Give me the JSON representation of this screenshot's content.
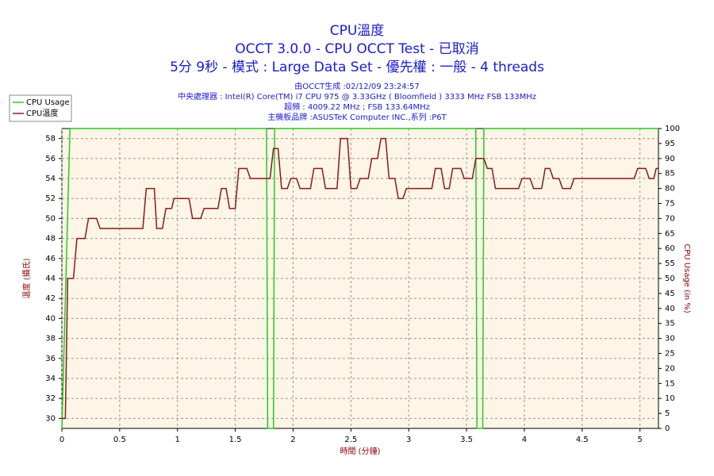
{
  "chart_data": {
    "type": "line",
    "title": "CPU溫度",
    "subtitle": "OCCT 3.0.0 - CPU OCCT Test - 已取消",
    "subtitle2": "5分 9秒 - 模式 : Large Data Set - 優先權 : 一般 - 4 threads",
    "info": [
      "由OCCT生成 :02/12/09 23:24:57",
      "中央處理器 : Intel(R) Core(TM) i7 CPU 975 @ 3.33GHz ( Bloomfield ) 3333 MHz FSB 133MHz",
      "超頻 : 4009.22 MHz ; FSB 133.64MHz",
      "主機板品牌 :ASUSTeK Computer INC.,系列 :P6T"
    ],
    "x_label": "時間 (分鐘)",
    "y_label": "溫度 (攝氏)",
    "y2_label": "CPU Usage (in %)",
    "xlim": [
      0,
      5.16
    ],
    "xticks": [
      0,
      0.5,
      1,
      1.5,
      2,
      2.5,
      3,
      3.5,
      4,
      4.5,
      5
    ],
    "ylim": [
      29,
      59
    ],
    "yticks": [
      30,
      32,
      34,
      36,
      38,
      40,
      42,
      44,
      46,
      48,
      50,
      52,
      54,
      56,
      58
    ],
    "y2lim": [
      0,
      100
    ],
    "y2ticks": [
      0,
      5,
      10,
      15,
      20,
      25,
      30,
      35,
      40,
      45,
      50,
      55,
      60,
      65,
      70,
      75,
      80,
      85,
      90,
      95,
      100
    ],
    "grid": true,
    "legend": "top-left",
    "series": [
      {
        "name": "CPU Usage",
        "color": "#22cc22",
        "axis": "y2",
        "x": [
          0,
          0.07,
          1.77,
          1.78,
          1.83,
          1.84,
          3.58,
          3.59,
          3.64,
          3.65,
          5.16
        ],
        "values": [
          0,
          100,
          100,
          0,
          0,
          100,
          100,
          0,
          0,
          100,
          100
        ]
      },
      {
        "name": "CPU溫度",
        "color": "#8b1a1a",
        "x": [
          0,
          0.03,
          0.05,
          0.1,
          0.13,
          0.2,
          0.23,
          0.3,
          0.33,
          0.7,
          0.73,
          0.8,
          0.82,
          0.87,
          0.9,
          0.95,
          0.97,
          1.1,
          1.13,
          1.2,
          1.23,
          1.35,
          1.38,
          1.42,
          1.45,
          1.5,
          1.53,
          1.6,
          1.63,
          1.8,
          1.83,
          1.87,
          1.9,
          1.95,
          1.98,
          2.03,
          2.06,
          2.15,
          2.18,
          2.25,
          2.28,
          2.38,
          2.41,
          2.47,
          2.5,
          2.55,
          2.58,
          2.65,
          2.68,
          2.73,
          2.76,
          2.8,
          2.83,
          2.88,
          2.91,
          2.95,
          2.98,
          3.2,
          3.23,
          3.28,
          3.31,
          3.35,
          3.38,
          3.45,
          3.48,
          3.55,
          3.58,
          3.65,
          3.68,
          3.72,
          3.75,
          3.95,
          3.98,
          4.05,
          4.08,
          4.15,
          4.18,
          4.22,
          4.25,
          4.3,
          4.33,
          4.4,
          4.43,
          4.95,
          4.98,
          5.05,
          5.08,
          5.12,
          5.14,
          5.16
        ],
        "values": [
          30,
          30,
          44,
          44,
          48,
          48,
          50,
          50,
          49,
          49,
          53,
          53,
          49,
          49,
          51,
          51,
          52,
          52,
          50,
          50,
          51,
          51,
          53,
          53,
          51,
          51,
          55,
          55,
          54,
          54,
          57,
          57,
          53,
          53,
          54,
          54,
          53,
          53,
          55,
          55,
          53,
          53,
          58,
          58,
          53,
          53,
          54,
          54,
          56,
          56,
          58,
          58,
          54,
          54,
          52,
          52,
          53,
          53,
          55,
          55,
          53,
          53,
          55,
          55,
          54,
          54,
          56,
          56,
          55,
          55,
          53,
          53,
          54,
          54,
          53,
          53,
          55,
          55,
          54,
          54,
          53,
          53,
          54,
          54,
          55,
          55,
          54,
          54,
          55,
          55
        ]
      }
    ]
  }
}
